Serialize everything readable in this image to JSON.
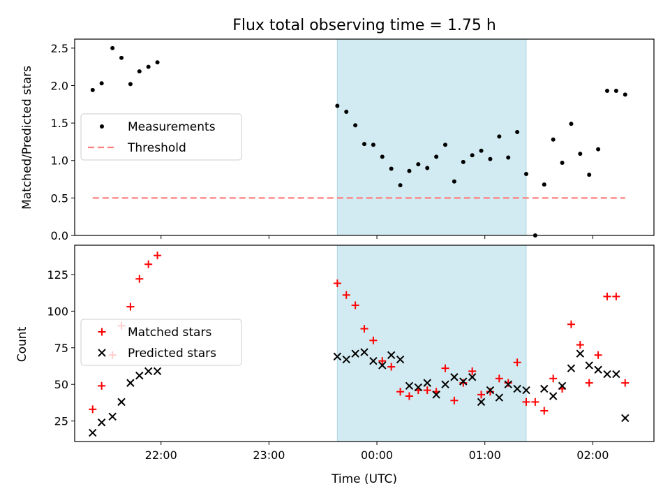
{
  "title": "Flux total observing time = 1.75 h",
  "xlabel": "Time (UTC)",
  "colors": {
    "band": "#add8e6",
    "measurement": "#000000",
    "threshold": "#ff7f7f",
    "matched": "#ff0000",
    "predicted": "#000000"
  },
  "chart_data": [
    {
      "type": "scatter",
      "ylabel": "Matched/Predicted stars",
      "ylim": [
        0,
        2.62
      ],
      "yticks": [
        "0.0",
        "0.5",
        "1.0",
        "1.5",
        "2.0",
        "2.5"
      ],
      "xlim": [
        "21:12",
        "02:34"
      ],
      "shaded_interval": [
        "23:38",
        "01:23"
      ],
      "legend": {
        "placement": "center-left",
        "entries": [
          "Measurements",
          "Threshold"
        ]
      },
      "series": [
        {
          "name": "Measurements",
          "marker": "dot",
          "x": [
            "21:22",
            "21:27",
            "21:33",
            "21:38",
            "21:43",
            "21:48",
            "21:53",
            "21:58",
            "23:38",
            "23:43",
            "23:48",
            "23:53",
            "23:58",
            "00:03",
            "00:08",
            "00:13",
            "00:18",
            "00:23",
            "00:28",
            "00:33",
            "00:38",
            "00:43",
            "00:48",
            "00:53",
            "00:58",
            "01:03",
            "01:08",
            "01:13",
            "01:18",
            "01:23",
            "01:28",
            "01:33",
            "01:38",
            "01:43",
            "01:48",
            "01:53",
            "01:58",
            "02:03",
            "02:08",
            "02:13",
            "02:18"
          ],
          "y": [
            1.94,
            2.03,
            2.5,
            2.37,
            2.02,
            2.19,
            2.25,
            2.31,
            1.73,
            1.65,
            1.47,
            1.22,
            1.21,
            1.05,
            0.89,
            0.67,
            0.86,
            0.95,
            0.9,
            1.05,
            1.21,
            0.72,
            0.98,
            1.07,
            1.13,
            1.02,
            1.32,
            1.04,
            1.38,
            0.82,
            0.0,
            0.68,
            1.28,
            0.97,
            1.49,
            1.09,
            0.81,
            1.15,
            1.93,
            1.93,
            1.88
          ]
        },
        {
          "name": "Threshold",
          "style": "dashed",
          "x": [
            "21:22",
            "02:18"
          ],
          "y": [
            0.5,
            0.5
          ]
        }
      ]
    },
    {
      "type": "scatter",
      "ylabel": "Count",
      "ylim": [
        11,
        145
      ],
      "yticks": [
        "25",
        "50",
        "75",
        "100",
        "125"
      ],
      "xlim": [
        "21:12",
        "02:34"
      ],
      "xticks": [
        "22:00",
        "23:00",
        "00:00",
        "01:00",
        "02:00"
      ],
      "shaded_interval": [
        "23:38",
        "01:23"
      ],
      "legend": {
        "placement": "center-left",
        "entries": [
          "Matched stars",
          "Predicted stars"
        ]
      },
      "series": [
        {
          "name": "Matched stars",
          "marker": "+",
          "x": [
            "21:22",
            "21:27",
            "21:33",
            "21:38",
            "21:43",
            "21:48",
            "21:53",
            "21:58",
            "23:38",
            "23:43",
            "23:48",
            "23:53",
            "23:58",
            "00:03",
            "00:08",
            "00:13",
            "00:18",
            "00:23",
            "00:28",
            "00:33",
            "00:38",
            "00:43",
            "00:48",
            "00:53",
            "00:58",
            "01:03",
            "01:08",
            "01:13",
            "01:18",
            "01:23",
            "01:28",
            "01:33",
            "01:38",
            "01:43",
            "01:48",
            "01:53",
            "01:58",
            "02:03",
            "02:08",
            "02:13",
            "02:18"
          ],
          "y": [
            33,
            49,
            70,
            90,
            103,
            122,
            132,
            138,
            119,
            111,
            104,
            88,
            80,
            66,
            62,
            45,
            42,
            46,
            46,
            45,
            61,
            39,
            51,
            59,
            43,
            45,
            54,
            51,
            65,
            38,
            38,
            32,
            54,
            47,
            91,
            77,
            51,
            70,
            110,
            110,
            51
          ]
        },
        {
          "name": "Predicted stars",
          "marker": "x",
          "x": [
            "21:22",
            "21:27",
            "21:33",
            "21:38",
            "21:43",
            "21:48",
            "21:53",
            "21:58",
            "23:38",
            "23:43",
            "23:48",
            "23:53",
            "23:58",
            "00:03",
            "00:08",
            "00:13",
            "00:18",
            "00:23",
            "00:28",
            "00:33",
            "00:38",
            "00:43",
            "00:48",
            "00:53",
            "00:58",
            "01:03",
            "01:08",
            "01:13",
            "01:18",
            "01:23",
            "01:33",
            "01:38",
            "01:43",
            "01:48",
            "01:53",
            "01:58",
            "02:03",
            "02:08",
            "02:13",
            "02:18"
          ],
          "y": [
            17,
            24,
            28,
            38,
            51,
            56,
            59,
            59,
            69,
            67,
            71,
            72,
            66,
            63,
            70,
            67,
            49,
            48,
            51,
            43,
            50,
            55,
            52,
            55,
            38,
            46,
            41,
            50,
            47,
            46,
            47,
            42,
            49,
            61,
            71,
            63,
            60,
            57,
            57,
            27
          ]
        }
      ]
    }
  ]
}
